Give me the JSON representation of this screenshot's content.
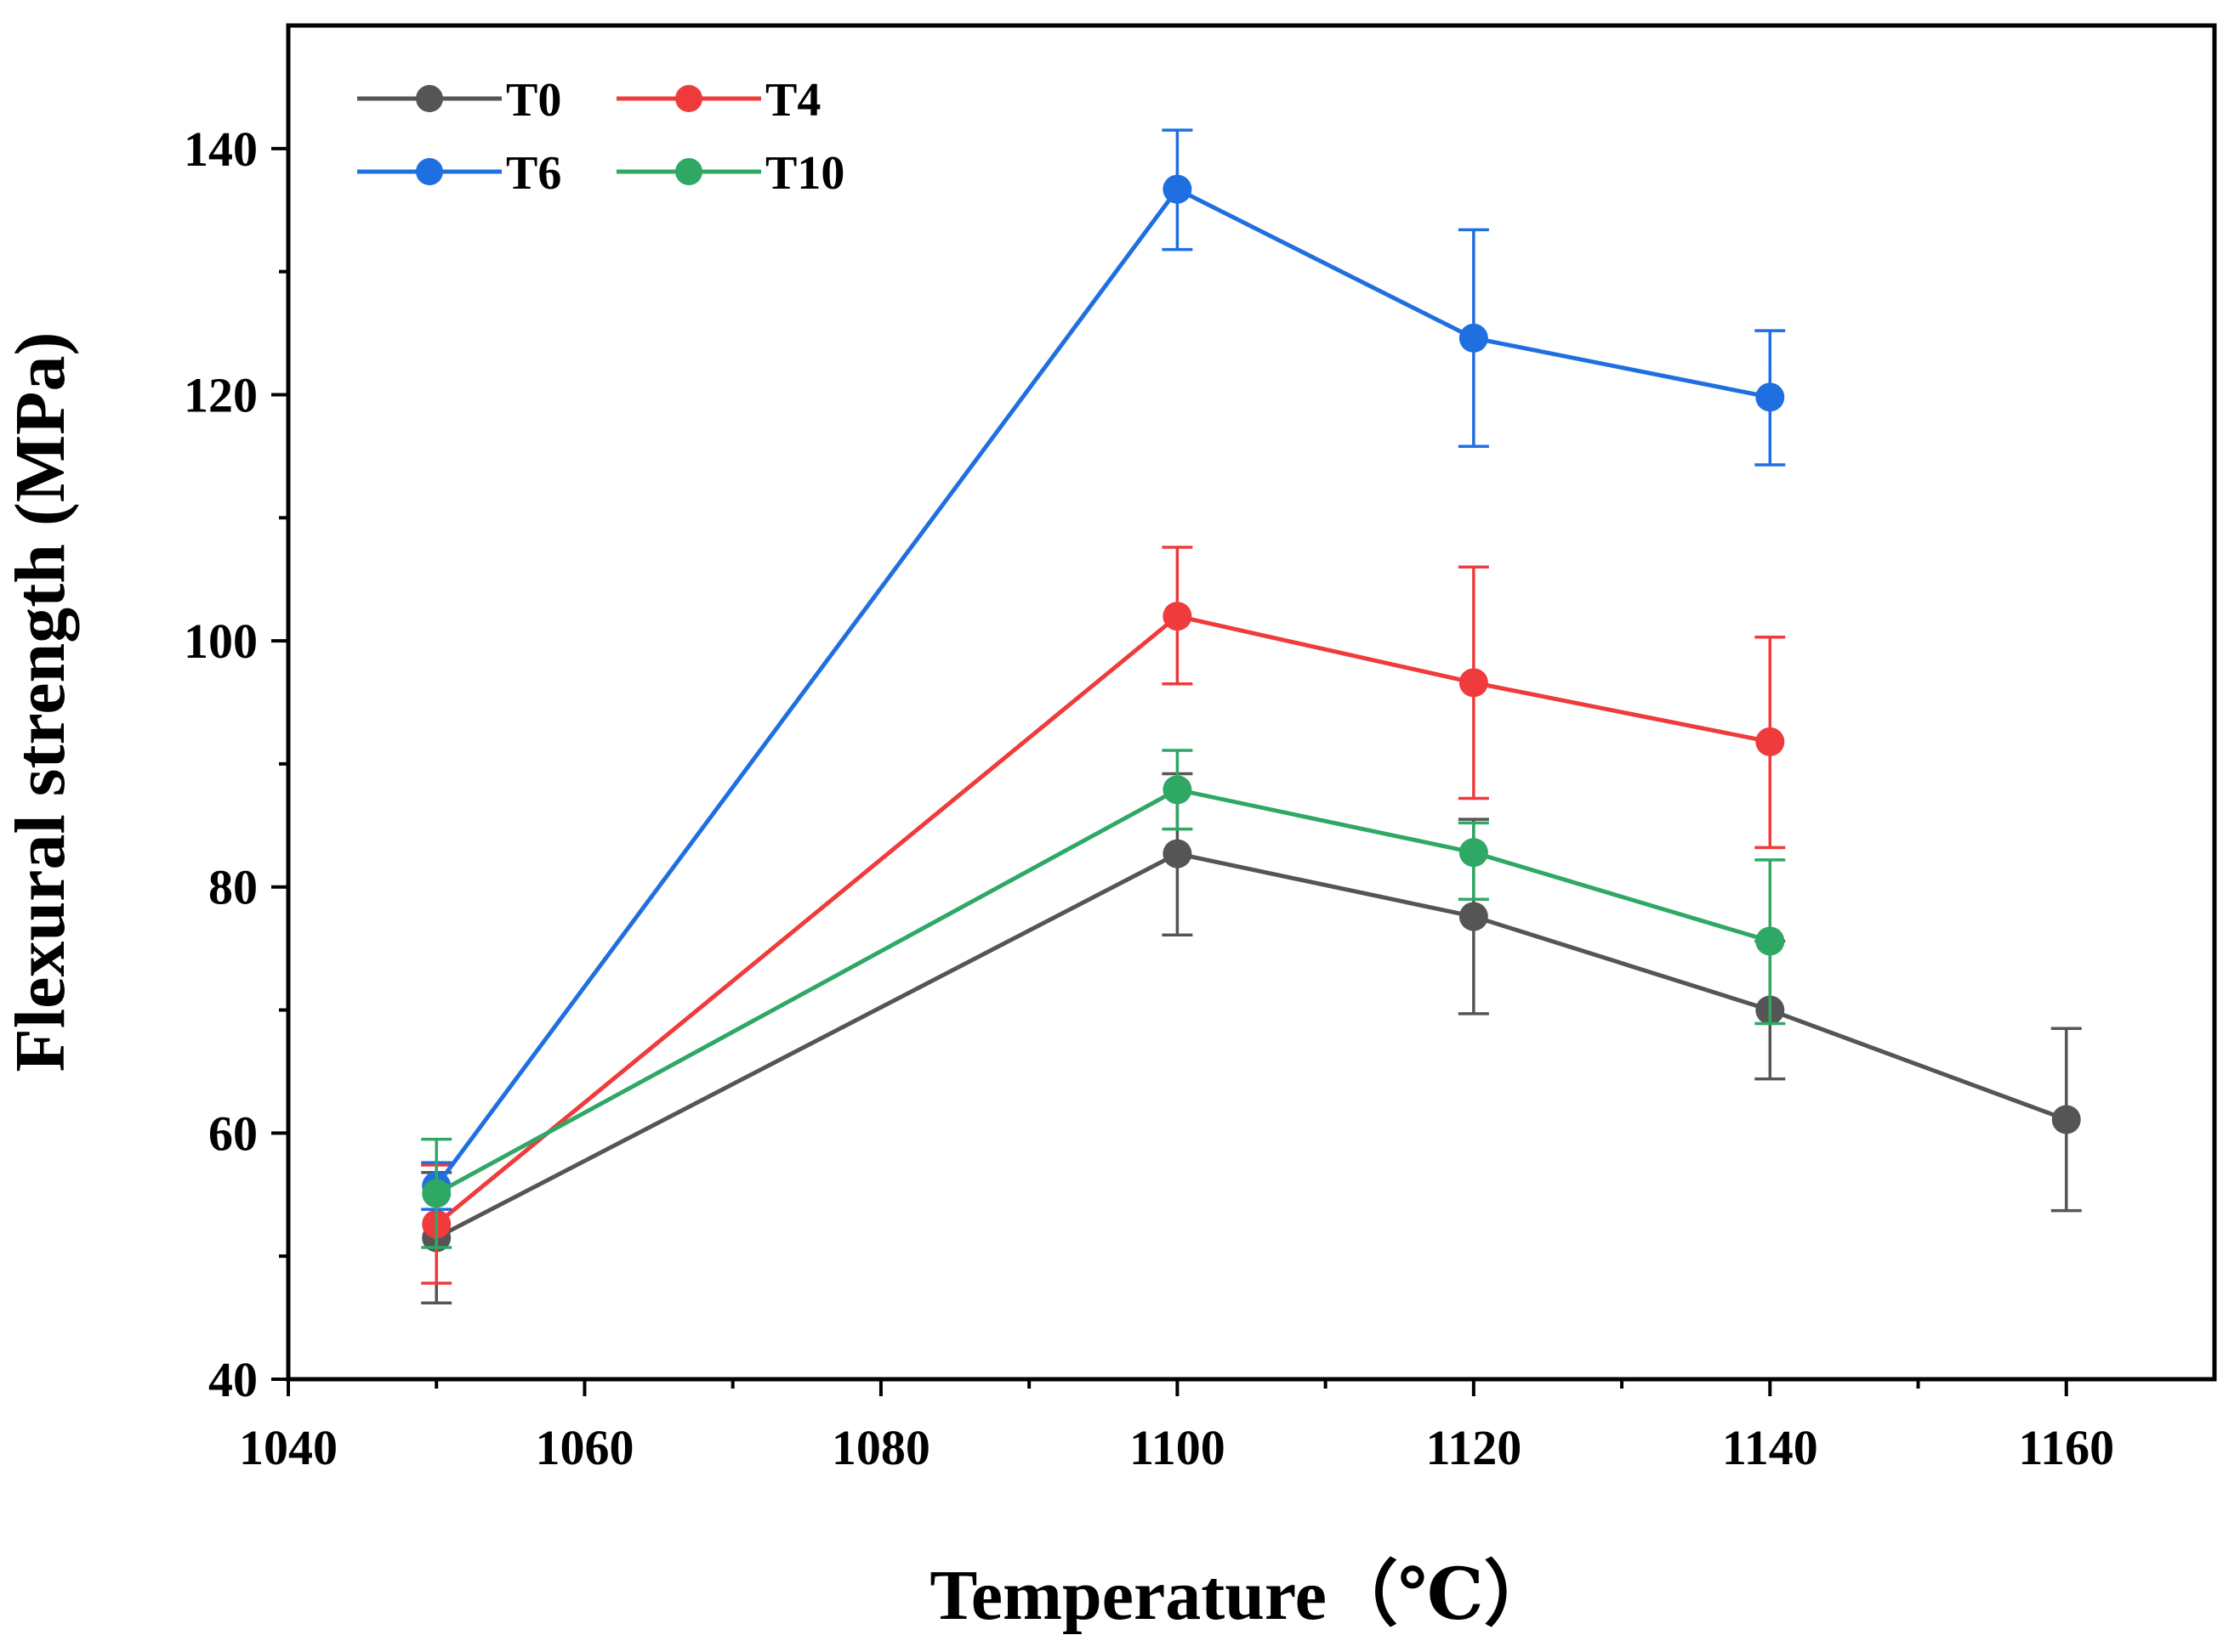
{
  "chart_data": {
    "type": "line",
    "title": "",
    "xlabel": "Temperature（℃）",
    "ylabel": "Flexural strength (MPa)",
    "xlim": [
      1040,
      1170
    ],
    "ylim": [
      40,
      150
    ],
    "xticks": [
      1040,
      1060,
      1080,
      1100,
      1120,
      1140,
      1160
    ],
    "yticks": [
      40,
      60,
      80,
      100,
      120,
      140
    ],
    "grid": false,
    "legend_position": "top-left",
    "series": [
      {
        "name": "T0",
        "color": "#555555",
        "x": [
          1050,
          1100,
          1120,
          1140,
          1160
        ],
        "y": [
          51.5,
          82.7,
          77.6,
          70.0,
          61.1
        ],
        "err_high": [
          56.8,
          89.2,
          85.5,
          75.6,
          68.5
        ],
        "err_low": [
          46.2,
          76.1,
          69.7,
          64.4,
          53.7
        ]
      },
      {
        "name": "T4",
        "color": "#ef3b3b",
        "x": [
          1050,
          1100,
          1120,
          1140
        ],
        "y": [
          52.6,
          102.0,
          96.6,
          91.8
        ],
        "err_high": [
          57.4,
          107.6,
          106.0,
          100.3
        ],
        "err_low": [
          47.8,
          96.5,
          87.2,
          83.2
        ]
      },
      {
        "name": "T6",
        "color": "#1f6fe0",
        "x": [
          1050,
          1100,
          1120,
          1140
        ],
        "y": [
          55.7,
          136.7,
          124.6,
          119.8
        ],
        "err_high": [
          57.6,
          141.5,
          133.4,
          125.2
        ],
        "err_low": [
          53.8,
          131.8,
          115.8,
          114.3
        ]
      },
      {
        "name": "T10",
        "color": "#2fa865",
        "x": [
          1050,
          1100,
          1120,
          1140
        ],
        "y": [
          55.1,
          87.9,
          82.8,
          75.6
        ],
        "err_high": [
          59.5,
          91.1,
          85.2,
          82.2
        ],
        "err_low": [
          50.7,
          84.7,
          79.0,
          68.9
        ]
      }
    ]
  }
}
